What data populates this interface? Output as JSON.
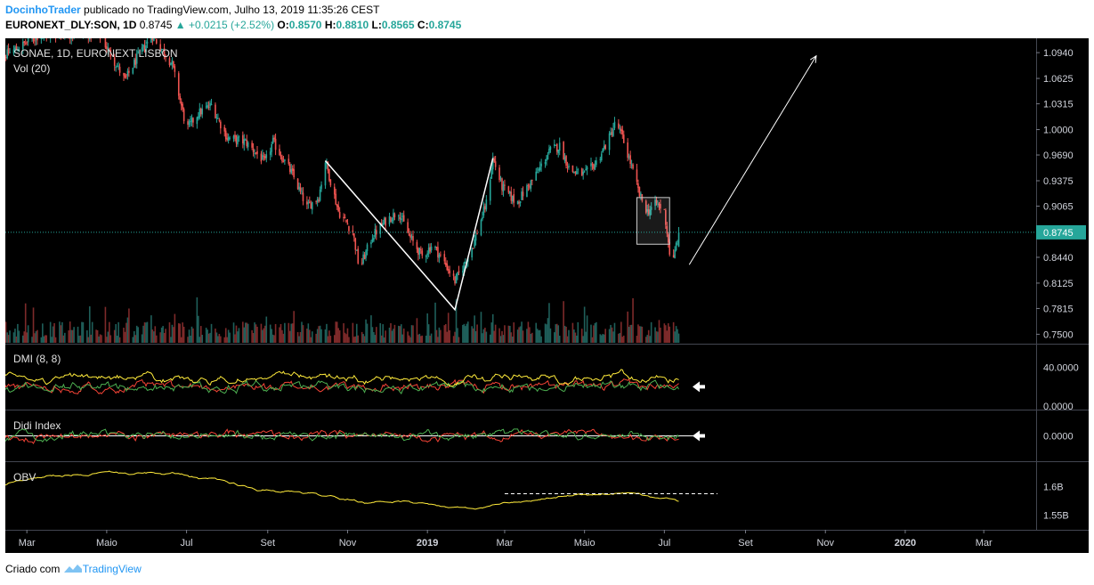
{
  "header": {
    "author": "DocinhoTrader",
    "published_text": "publicado no TradingView.com, Julho 13, 2019 11:35:26 CEST",
    "symbol": "EURONEXT_DLY:SON, 1D",
    "last": "0.8745",
    "change": "+0.0215 (+2.52%)",
    "open_label": "O:",
    "open": "0.8570",
    "high_label": "H:",
    "high": "0.8810",
    "low_label": "L:",
    "low": "0.8565",
    "close_label": "C:",
    "close": "0.8745"
  },
  "panes": {
    "main_title": "SONAE, 1D, EURONEXT LISBON",
    "volume_title": "Vol (20)",
    "dmi_title": "DMI (8, 8)",
    "didi_title": "Didi Index",
    "obv_title": "OBV"
  },
  "colors": {
    "up": "#26a69a",
    "down": "#ef5350",
    "background": "#000000",
    "plus_di": "#4caf50",
    "minus_di": "#f44336",
    "adx": "#ffeb3b",
    "obv": "#ffeb3b",
    "price_line": "#26a69a",
    "accent": "#2196f3"
  },
  "chart_data": {
    "type": "candlestick",
    "title": "SONAE, 1D, EURONEXT LISBON",
    "price_axis": {
      "ticks": [
        "1.0940",
        "1.0625",
        "1.0315",
        "1.0000",
        "0.9690",
        "0.9375",
        "0.9065",
        "0.8745",
        "0.8440",
        "0.8125",
        "0.7815",
        "0.7500"
      ],
      "last_price": "0.8745",
      "ylim": [
        0.745,
        1.105
      ]
    },
    "time_axis": {
      "labels": [
        "Mar",
        "Maio",
        "Jul",
        "Set",
        "Nov",
        "2019",
        "Mar",
        "Maio",
        "Jul",
        "Set",
        "Nov",
        "2020",
        "Mar"
      ]
    },
    "price_path": [
      {
        "date": "2018-02-01",
        "price": 1.08
      },
      {
        "date": "2018-03-10",
        "price": 1.115
      },
      {
        "date": "2018-04-25",
        "price": 1.118
      },
      {
        "date": "2018-05-15",
        "price": 1.06
      },
      {
        "date": "2018-05-25",
        "price": 1.09
      },
      {
        "date": "2018-06-05",
        "price": 1.115
      },
      {
        "date": "2018-06-20",
        "price": 1.08
      },
      {
        "date": "2018-07-01",
        "price": 1.0
      },
      {
        "date": "2018-07-10",
        "price": 1.02
      },
      {
        "date": "2018-07-20",
        "price": 1.03
      },
      {
        "date": "2018-08-01",
        "price": 0.99
      },
      {
        "date": "2018-08-15",
        "price": 0.985
      },
      {
        "date": "2018-08-30",
        "price": 0.96
      },
      {
        "date": "2018-09-05",
        "price": 0.985
      },
      {
        "date": "2018-09-20",
        "price": 0.945
      },
      {
        "date": "2018-10-01",
        "price": 0.905
      },
      {
        "date": "2018-10-10",
        "price": 0.918
      },
      {
        "date": "2018-10-15",
        "price": 0.962
      },
      {
        "date": "2018-10-25",
        "price": 0.9
      },
      {
        "date": "2018-11-05",
        "price": 0.875
      },
      {
        "date": "2018-11-10",
        "price": 0.83
      },
      {
        "date": "2018-11-20",
        "price": 0.87
      },
      {
        "date": "2018-12-01",
        "price": 0.89
      },
      {
        "date": "2018-12-10",
        "price": 0.9
      },
      {
        "date": "2018-12-18",
        "price": 0.87
      },
      {
        "date": "2018-12-28",
        "price": 0.845
      },
      {
        "date": "2019-01-05",
        "price": 0.86
      },
      {
        "date": "2019-01-15",
        "price": 0.835
      },
      {
        "date": "2019-01-22",
        "price": 0.815
      },
      {
        "date": "2019-01-29",
        "price": 0.835
      },
      {
        "date": "2019-02-05",
        "price": 0.86
      },
      {
        "date": "2019-02-15",
        "price": 0.91
      },
      {
        "date": "2019-02-20",
        "price": 0.965
      },
      {
        "date": "2019-02-27",
        "price": 0.93
      },
      {
        "date": "2019-03-10",
        "price": 0.91
      },
      {
        "date": "2019-03-25",
        "price": 0.945
      },
      {
        "date": "2019-04-05",
        "price": 0.975
      },
      {
        "date": "2019-04-12",
        "price": 0.98
      },
      {
        "date": "2019-04-20",
        "price": 0.95
      },
      {
        "date": "2019-05-01",
        "price": 0.945
      },
      {
        "date": "2019-05-10",
        "price": 0.96
      },
      {
        "date": "2019-05-20",
        "price": 0.99
      },
      {
        "date": "2019-05-25",
        "price": 1.01
      },
      {
        "date": "2019-05-30",
        "price": 0.99
      },
      {
        "date": "2019-06-05",
        "price": 0.96
      },
      {
        "date": "2019-06-12",
        "price": 0.92
      },
      {
        "date": "2019-06-18",
        "price": 0.9
      },
      {
        "date": "2019-06-25",
        "price": 0.91
      },
      {
        "date": "2019-07-01",
        "price": 0.9
      },
      {
        "date": "2019-07-05",
        "price": 0.85
      },
      {
        "date": "2019-07-08",
        "price": 0.84
      },
      {
        "date": "2019-07-10",
        "price": 0.86
      },
      {
        "date": "2019-07-12",
        "price": 0.8745
      }
    ],
    "drawings": {
      "zigzag": [
        {
          "date": "2018-10-15",
          "price": 0.962
        },
        {
          "date": "2019-01-22",
          "price": 0.78
        },
        {
          "date": "2019-02-20",
          "price": 0.965
        }
      ],
      "box": {
        "from": "2019-06-10",
        "to": "2019-07-05",
        "high": 0.917,
        "low": 0.86
      },
      "arrow": {
        "from": {
          "date": "2019-07-20",
          "price": 0.835
        },
        "to": {
          "date": "2019-10-25",
          "price": 1.09
        }
      }
    },
    "indicators": {
      "dmi_ticks": [
        "40.0000",
        "0.0000"
      ],
      "didi_ticks": [
        "0.0000"
      ],
      "obv_ticks": [
        "1.6B",
        "1.55B"
      ]
    }
  },
  "footer": {
    "created_with": "Criado com",
    "brand": "TradingView"
  }
}
